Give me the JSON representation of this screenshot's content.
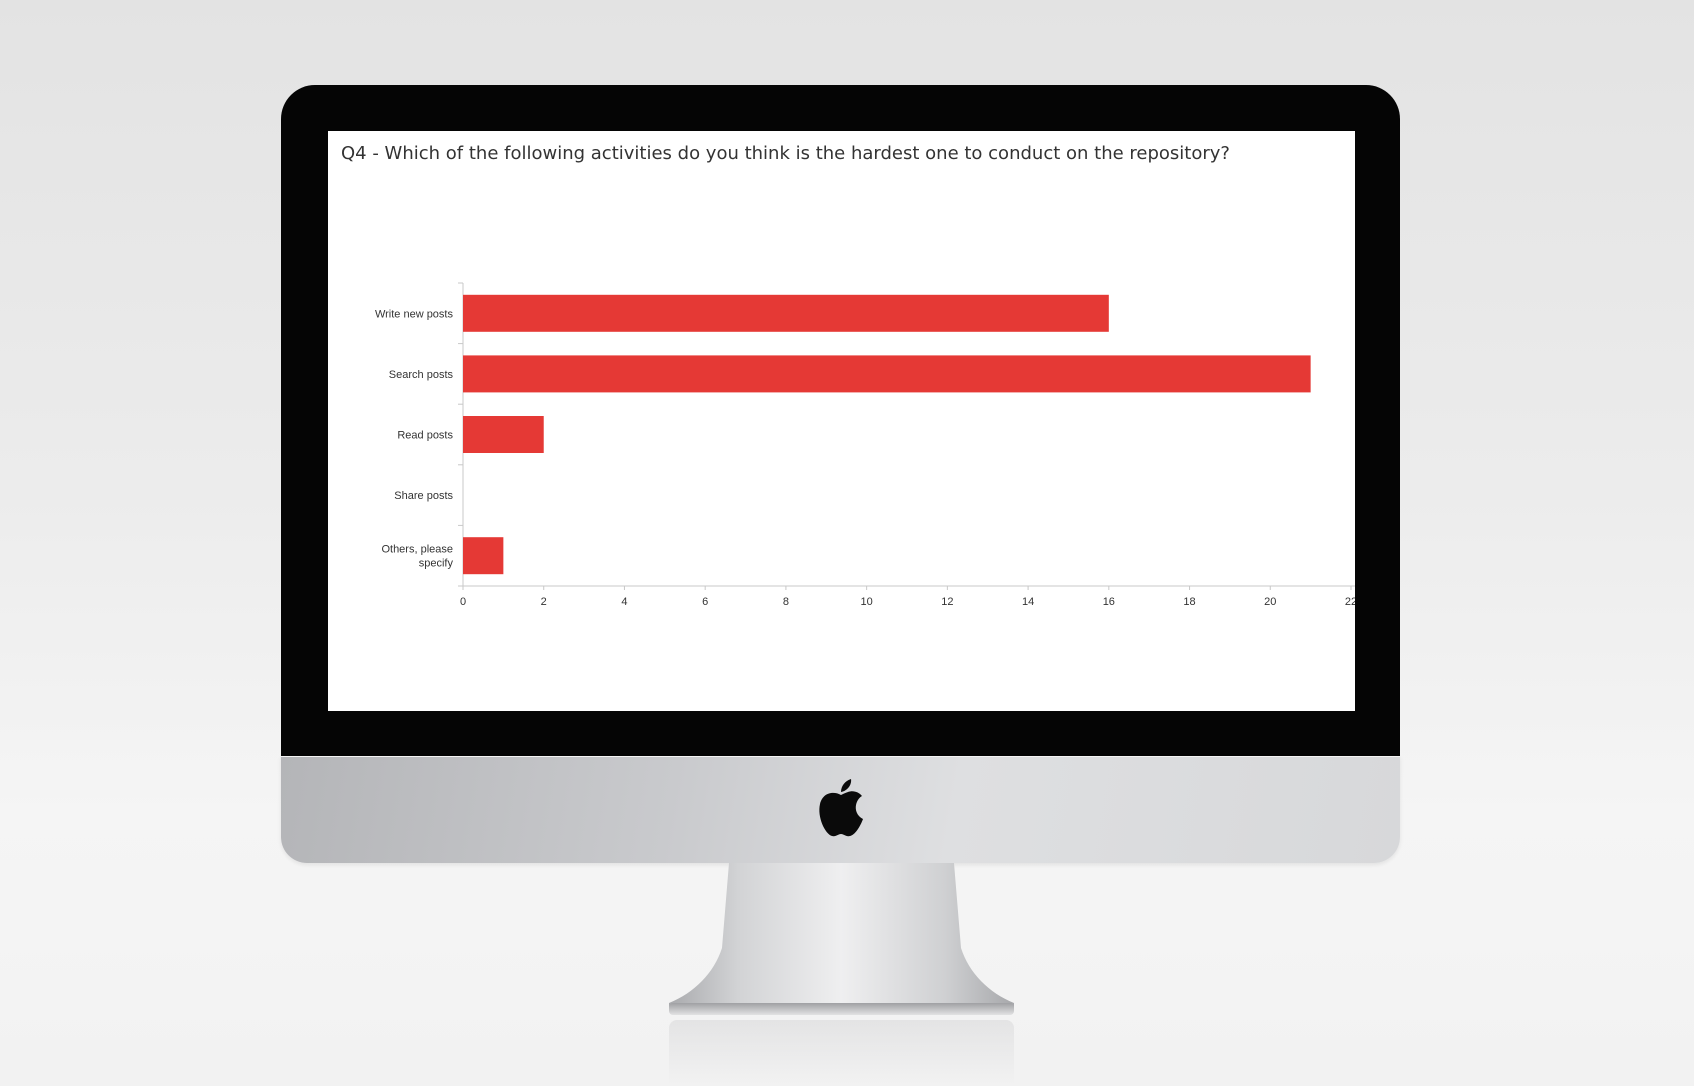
{
  "colors": {
    "bar": "#e53935",
    "axis": "#c8c8c8",
    "text": "#333333",
    "bezel": "#050505",
    "screen": "#ffffff"
  },
  "device": {
    "logo_icon": "apple-logo-icon"
  },
  "chart_data": {
    "type": "bar",
    "orientation": "horizontal",
    "title": "Q4 - Which of the following activities do you think is the hardest one to conduct on the repository?",
    "categories": [
      [
        "Write new posts"
      ],
      [
        "Search posts"
      ],
      [
        "Read posts"
      ],
      [
        "Share posts"
      ],
      [
        "Others, please",
        "specify"
      ]
    ],
    "values": [
      16,
      21,
      2,
      0,
      1
    ],
    "x_ticks": [
      "0",
      "2",
      "4",
      "6",
      "8",
      "10",
      "12",
      "14",
      "16",
      "18",
      "20",
      "22"
    ],
    "xlim": [
      0,
      22
    ],
    "xlabel": "",
    "ylabel": "",
    "grid": false,
    "legend": "none"
  }
}
